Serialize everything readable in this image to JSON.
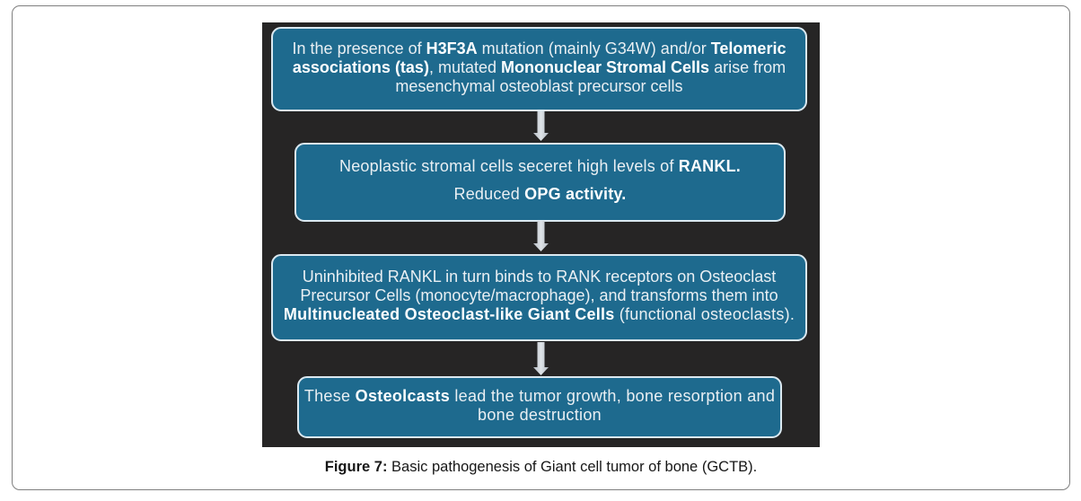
{
  "figure": {
    "colors": {
      "panel_background": "#262525",
      "box_fill": "#1e6a8e",
      "box_border": "#dbe9f1",
      "box_text": "#e9eff3",
      "box_text_bold": "#fcfeff",
      "arrow_edge": "#b3bac2",
      "arrow_center": "#dfe4e8",
      "card_border": "#7f7f7f"
    },
    "boxes": [
      {
        "lines": [
          [
            {
              "t": "In the presence of ",
              "b": 0
            },
            {
              "t": "H3F3A",
              "b": 1
            },
            {
              "t": " mutation (mainly G34W) and/or ",
              "b": 0
            },
            {
              "t": "Telomeric",
              "b": 1
            }
          ],
          [
            {
              "t": "associations (tas)",
              "b": 1
            },
            {
              "t": ", mutated ",
              "b": 0
            },
            {
              "t": "Mononuclear Stromal Cells",
              "b": 1
            },
            {
              "t": " arise from",
              "b": 0
            }
          ],
          [
            {
              "t": "mesenchymal osteoblast precursor cells",
              "b": 0
            }
          ]
        ]
      },
      {
        "lines": [
          [
            {
              "t": "Neoplastic stromal cells seceret high levels of ",
              "b": 0
            },
            {
              "t": "RANKL.",
              "b": 1
            }
          ],
          [
            {
              "t": "Reduced ",
              "b": 0
            },
            {
              "t": "OPG activity.",
              "b": 1
            }
          ]
        ]
      },
      {
        "lines": [
          [
            {
              "t": "Uninhibited RANKL in turn binds to RANK receptors on Osteoclast",
              "b": 0
            }
          ],
          [
            {
              "t": "Precursor Cells (monocyte/macrophage), and transforms them into",
              "b": 0
            }
          ],
          [
            {
              "t": "Multinucleated Osteoclast-like Giant Cells",
              "b": 1
            },
            {
              "t": " (functional osteoclasts).",
              "b": 0
            }
          ]
        ]
      },
      {
        "lines": [
          [
            {
              "t": "These ",
              "b": 0
            },
            {
              "t": "Osteolcasts",
              "b": 1
            },
            {
              "t": " lead the tumor growth, bone resorption and",
              "b": 0
            }
          ],
          [
            {
              "t": "bone destruction",
              "b": 0
            }
          ]
        ]
      }
    ]
  },
  "caption": {
    "label": "Figure 7:",
    "text": " Basic pathogenesis of Giant cell tumor of bone (GCTB)."
  }
}
